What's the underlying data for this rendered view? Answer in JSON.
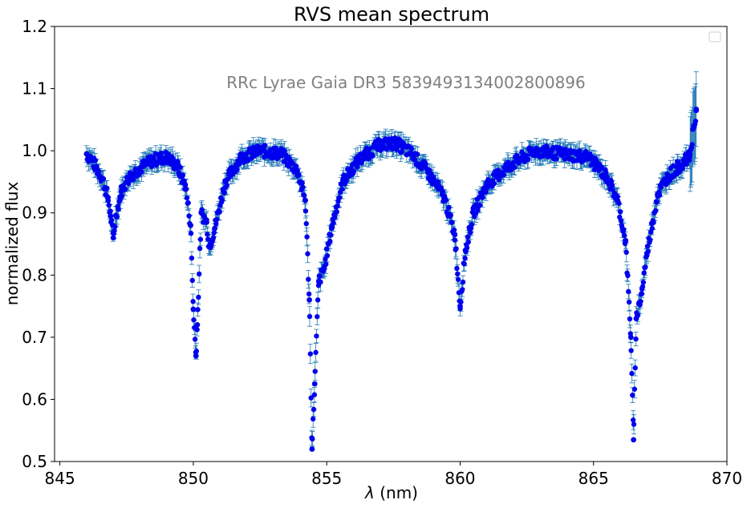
{
  "chart_data": {
    "type": "scatter",
    "title": "RVS mean spectrum",
    "xlabel_italic": "λ",
    "xlabel_rest": " (nm)",
    "ylabel": "normalized flux",
    "annotation": "RRc Lyrae Gaia DR3 5839493134002800896",
    "xlim": [
      844.8,
      870.0
    ],
    "ylim": [
      0.5,
      1.2
    ],
    "xticks": [
      845,
      850,
      855,
      860,
      865,
      870
    ],
    "yticks": [
      0.5,
      0.6,
      0.7,
      0.8,
      0.9,
      1.0,
      1.1,
      1.2
    ],
    "ytick_labels": [
      "0.5",
      "0.6",
      "0.7",
      "0.8",
      "0.9",
      "1.0",
      "1.1",
      "1.2"
    ],
    "grid": false,
    "legend": "top-right (empty)",
    "series": [
      {
        "marker_color": "#0000ee",
        "errorbar_color": "#1f77b4",
        "x": [
          846.0,
          846.2,
          846.4,
          846.6,
          846.8,
          846.9,
          847.0,
          847.1,
          847.3,
          847.6,
          848.0,
          848.5,
          849.0,
          849.4,
          849.7,
          849.9,
          850.0,
          850.1,
          850.15,
          850.3,
          850.5,
          850.6,
          850.8,
          851.2,
          851.8,
          852.5,
          853.3,
          853.9,
          854.2,
          854.35,
          854.45,
          854.55,
          854.7,
          854.9,
          855.2,
          855.6,
          856.2,
          857.0,
          857.6,
          858.2,
          858.8,
          859.4,
          859.8,
          860.0,
          860.2,
          860.5,
          861.0,
          861.8,
          862.8,
          863.8,
          864.8,
          865.5,
          865.9,
          866.2,
          866.4,
          866.5,
          866.6,
          866.8,
          867.0,
          867.4,
          867.8,
          868.2,
          868.6,
          868.85
        ],
        "y": [
          0.995,
          0.985,
          0.97,
          0.955,
          0.925,
          0.895,
          0.86,
          0.895,
          0.935,
          0.958,
          0.972,
          0.985,
          0.99,
          0.975,
          0.945,
          0.88,
          0.745,
          0.67,
          0.72,
          0.9,
          0.885,
          0.845,
          0.875,
          0.95,
          0.99,
          1.0,
          0.995,
          0.968,
          0.92,
          0.76,
          0.52,
          0.625,
          0.79,
          0.81,
          0.88,
          0.95,
          0.985,
          1.01,
          1.012,
          0.995,
          0.965,
          0.925,
          0.865,
          0.75,
          0.84,
          0.9,
          0.945,
          0.975,
          1.0,
          0.995,
          0.99,
          0.958,
          0.92,
          0.855,
          0.7,
          0.535,
          0.73,
          0.77,
          0.835,
          0.93,
          0.96,
          0.975,
          0.99,
          1.065
        ]
      }
    ]
  }
}
